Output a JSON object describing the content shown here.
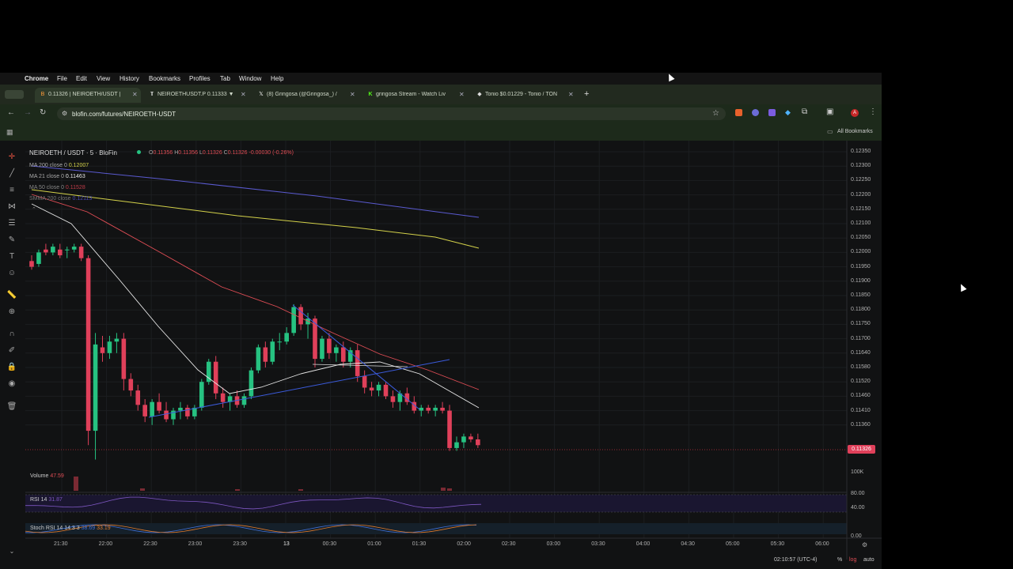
{
  "menubar": {
    "items": [
      "Chrome",
      "File",
      "Edit",
      "View",
      "History",
      "Bookmarks",
      "Profiles",
      "Tab",
      "Window",
      "Help"
    ]
  },
  "tabs": [
    {
      "title": "0.11326 | NEIROETH/USDT |",
      "icon": "blofin-icon"
    },
    {
      "title": "NEIROETHUSDT.P 0.11333 ▼",
      "icon": "tradingview-icon"
    },
    {
      "title": "(8) Gringosa (@Gringosa_) /",
      "icon": "x-icon"
    },
    {
      "title": "gringosa Stream - Watch Liv",
      "icon": "kick-icon"
    },
    {
      "title": "Tonio $0.01229 - Tonio / TON",
      "icon": "dex-icon"
    }
  ],
  "address": {
    "url": "blofin.com/futures/NEIROETH-USDT"
  },
  "bookmarks": {
    "all_label": "All Bookmarks"
  },
  "chart": {
    "symbol": "NEIROETH / USDT · 5 · BloFin",
    "ohlc": {
      "o": "O",
      "o_val": "0.11356",
      "h": "H",
      "h_val": "0.11356",
      "l": "L",
      "l_val": "0.11326",
      "c": "C",
      "c_val": "0.11326",
      "chg": "-0.00030 (-0.26%)"
    },
    "indicators": [
      {
        "label": "MA 200 close 0",
        "value": "0.12007",
        "color": "#d4d24a"
      },
      {
        "label": "MA 21 close 0",
        "value": "0.11463",
        "color": "#e8e8e8"
      },
      {
        "label": "MA 50 close 0",
        "value": "0.11528",
        "color": "#e04d55"
      },
      {
        "label": "SMMA 200 close",
        "value": "0.12113",
        "color": "#5a5ad0"
      }
    ],
    "volume": {
      "label": "Volume",
      "value": "47.59"
    },
    "rsi": {
      "label": "RSI 14",
      "value": "31.87"
    },
    "stoch": {
      "label": "Stoch RSI 14 14 3 3",
      "v1": "38.69",
      "v2": "33.19"
    },
    "price_labels": [
      "0.12350",
      "0.12300",
      "0.12250",
      "0.12200",
      "0.12150",
      "0.12100",
      "0.12050",
      "0.12000",
      "0.11950",
      "0.11900",
      "0.11850",
      "0.11800",
      "0.11750",
      "0.11700",
      "0.11640",
      "0.11580",
      "0.11520",
      "0.11460",
      "0.11410",
      "0.11360"
    ],
    "last_price": "0.11326",
    "vol_scale": "100K",
    "rsi_scale": [
      "80.00",
      "40.00"
    ],
    "stoch_scale": "0.00",
    "time_labels": [
      "21:30",
      "22:00",
      "22:30",
      "23:00",
      "23:30",
      "13",
      "00:30",
      "01:00",
      "01:30",
      "02:00",
      "02:30",
      "03:00",
      "03:30",
      "04:00",
      "04:30",
      "05:00",
      "05:30",
      "06:00"
    ],
    "footer": {
      "clock": "02:10:57 (UTC-4)",
      "pct": "%",
      "log": "log",
      "auto": "auto"
    }
  },
  "colors": {
    "up": "#26c281",
    "down": "#e0405a",
    "ma21": "#e8e8e8",
    "ma50": "#e04d55",
    "ma200": "#d4d24a",
    "smma": "#5a5ad0",
    "trend": "#3b5bdb"
  }
}
